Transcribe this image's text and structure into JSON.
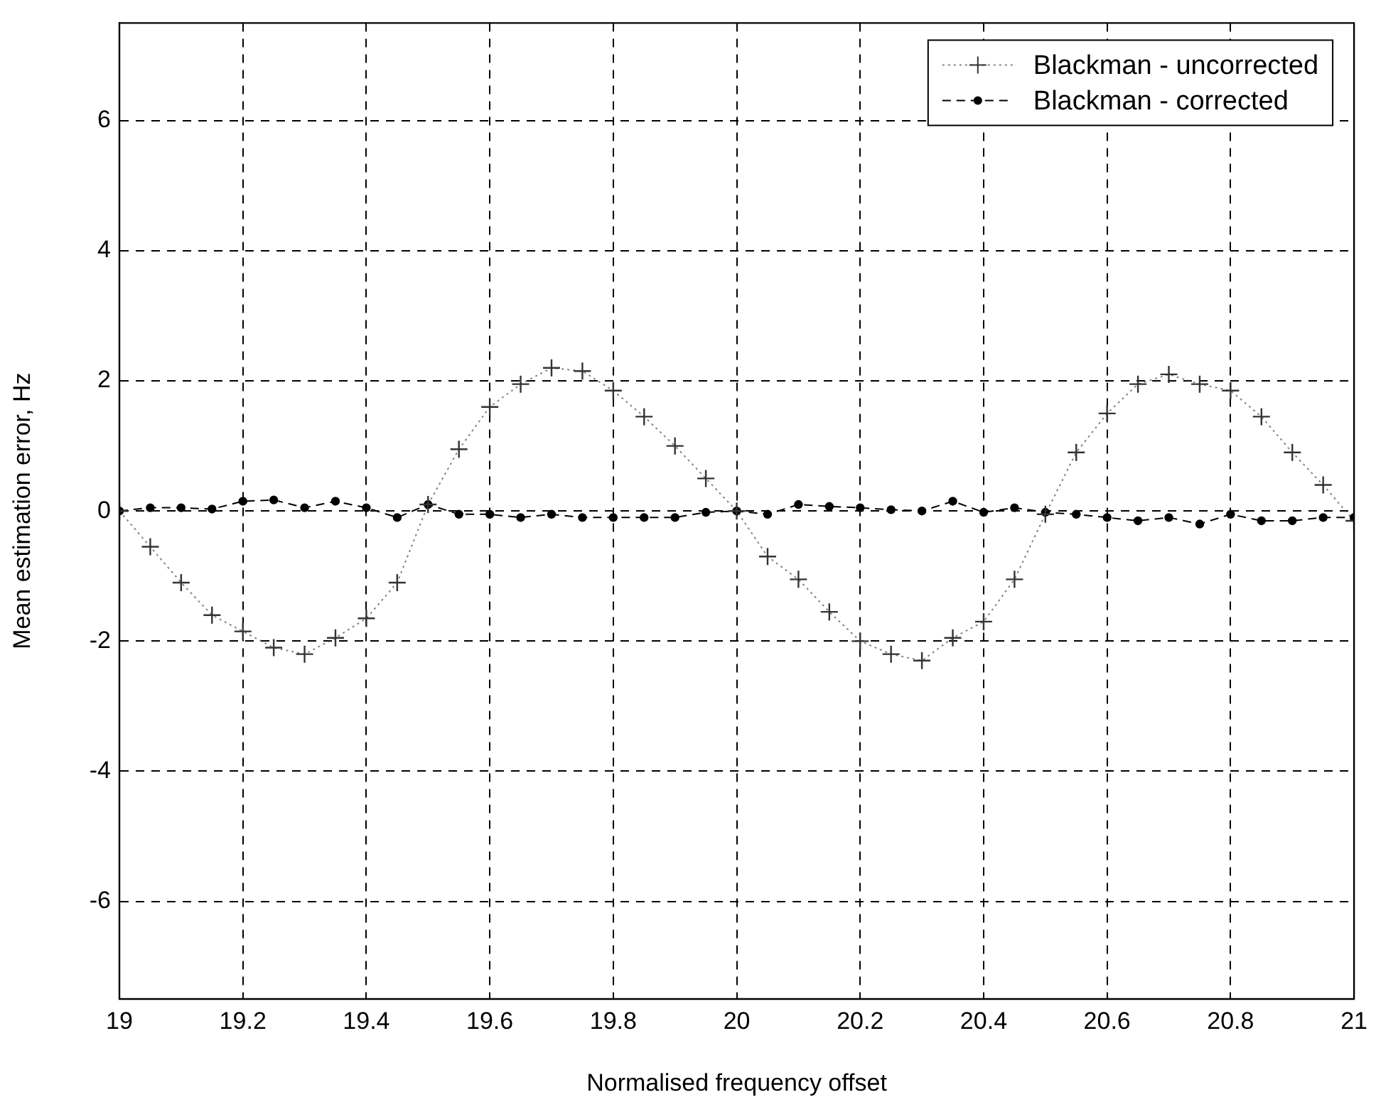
{
  "chart_data": {
    "type": "line",
    "xlabel": "Normalised frequency offset",
    "ylabel": "Mean estimation error, Hz",
    "x": [
      19,
      19.05,
      19.1,
      19.15,
      19.2,
      19.25,
      19.3,
      19.35,
      19.4,
      19.45,
      19.5,
      19.55,
      19.6,
      19.65,
      19.7,
      19.75,
      19.8,
      19.85,
      19.9,
      19.95,
      20,
      20.05,
      20.1,
      20.15,
      20.2,
      20.25,
      20.3,
      20.35,
      20.4,
      20.45,
      20.5,
      20.55,
      20.6,
      20.65,
      20.7,
      20.75,
      20.8,
      20.85,
      20.9,
      20.95,
      21
    ],
    "series": [
      {
        "name": "Blackman - uncorrected",
        "color": "#333333",
        "marker": "cross",
        "line_style": "dotted",
        "values": [
          0,
          -0.55,
          -1.1,
          -1.6,
          -1.85,
          -2.1,
          -2.2,
          -1.95,
          -1.65,
          -1.1,
          0.1,
          0.95,
          1.6,
          1.95,
          2.2,
          2.15,
          1.85,
          1.45,
          1.0,
          0.5,
          0,
          -0.7,
          -1.05,
          -1.55,
          -2.0,
          -2.2,
          -2.3,
          -1.95,
          -1.7,
          -1.05,
          -0.05,
          0.9,
          1.5,
          1.95,
          2.1,
          1.95,
          1.85,
          1.45,
          0.9,
          0.4,
          -0.15
        ]
      },
      {
        "name": "Blackman - corrected",
        "color": "#000000",
        "marker": "circle",
        "line_style": "dashed",
        "values": [
          0,
          0.05,
          0.05,
          0.03,
          0.15,
          0.17,
          0.05,
          0.15,
          0.05,
          -0.1,
          0.1,
          -0.05,
          -0.05,
          -0.1,
          -0.05,
          -0.1,
          -0.1,
          -0.1,
          -0.1,
          -0.02,
          0,
          -0.05,
          0.1,
          0.07,
          0.05,
          0.02,
          0,
          0.15,
          -0.02,
          0.05,
          -0.02,
          -0.05,
          -0.1,
          -0.15,
          -0.1,
          -0.2,
          -0.05,
          -0.15,
          -0.15,
          -0.1,
          -0.1
        ]
      }
    ],
    "xlim": [
      19,
      21
    ],
    "xticks": [
      19,
      19.2,
      19.4,
      19.6,
      19.8,
      20,
      20.2,
      20.4,
      20.6,
      20.8,
      21
    ],
    "ylim": [
      -7.5,
      7.5
    ],
    "yticks": [
      -6,
      -4,
      -2,
      0,
      2,
      4,
      6
    ],
    "grid": true,
    "legend": "top right"
  }
}
